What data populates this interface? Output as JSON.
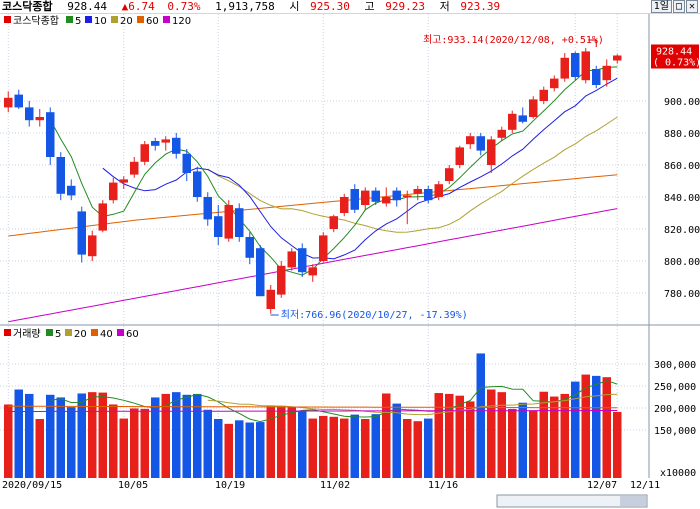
{
  "header": {
    "name": "코스닥종합",
    "close": "928.44",
    "change": "▲6.74",
    "change_pct": "0.73%",
    "volume": "1,913,758",
    "open_label": "시",
    "open": "925.30",
    "high_label": "고",
    "high": "929.23",
    "low_label": "저",
    "low": "923.39"
  },
  "window_controls": {
    "period": "1일",
    "restore": "□",
    "close": "✕"
  },
  "price_panel": {
    "legend": [
      {
        "label": "코스닥종합",
        "color": "#e00000"
      },
      {
        "label": "5",
        "color": "#228b22"
      },
      {
        "label": "10",
        "color": "#1e1ee6"
      },
      {
        "label": "20",
        "color": "#b0a030"
      },
      {
        "label": "60",
        "color": "#e06000"
      },
      {
        "label": "120",
        "color": "#c800c8"
      }
    ],
    "current_price_label": "928.44",
    "current_pct_label": "( 0.73%)",
    "high_annotation": "최고:933.14(2020/12/08, +0.51%)",
    "low_annotation": "최저:766.96(2020/10/27, -17.39%)"
  },
  "volume_panel": {
    "legend": [
      {
        "label": "거래량",
        "color": "#e00000"
      },
      {
        "label": "5",
        "color": "#228b22"
      },
      {
        "label": "20",
        "color": "#b0a030"
      },
      {
        "label": "40",
        "color": "#e06000"
      },
      {
        "label": "60",
        "color": "#c800c8"
      }
    ],
    "unit": "x10000"
  },
  "colors": {
    "up": "#e8201c",
    "down": "#1456e6",
    "grid": "#c8d2e6"
  },
  "chart_data": {
    "type": "candlestick",
    "x_labels": [
      "2020/09/15",
      "10/05",
      "10/19",
      "11/02",
      "11/16",
      "12/07",
      "12/11"
    ],
    "price_axis": {
      "ticks": [
        780,
        800,
        820,
        840,
        860,
        880,
        900
      ],
      "range": [
        766,
        930
      ]
    },
    "volume_axis": {
      "ticks": [
        "150,000",
        "200,000",
        "250,000",
        "300,000"
      ],
      "range": [
        100000,
        330000
      ]
    },
    "candles": [
      {
        "date": "2020/09/15",
        "o": 896.0,
        "h": 906.0,
        "l": 893.0,
        "c": 902.0,
        "v": 208000
      },
      {
        "date": "2020/09/16",
        "o": 904.0,
        "h": 907.0,
        "l": 895.0,
        "c": 896.0,
        "v": 242000
      },
      {
        "date": "2020/09/17",
        "o": 896.0,
        "h": 900.0,
        "l": 884.0,
        "c": 888.0,
        "v": 232000
      },
      {
        "date": "2020/09/18",
        "o": 888.0,
        "h": 895.0,
        "l": 884.0,
        "c": 890.0,
        "v": 175000
      },
      {
        "date": "2020/09/21",
        "o": 893.0,
        "h": 896.0,
        "l": 860.0,
        "c": 865.0,
        "v": 230000
      },
      {
        "date": "2020/09/22",
        "o": 865.0,
        "h": 868.0,
        "l": 838.0,
        "c": 842.0,
        "v": 224000
      },
      {
        "date": "2020/09/23",
        "o": 847.0,
        "h": 851.0,
        "l": 838.0,
        "c": 841.0,
        "v": 202000
      },
      {
        "date": "2020/09/24",
        "o": 831.0,
        "h": 834.0,
        "l": 799.0,
        "c": 804.0,
        "v": 233000
      },
      {
        "date": "2020/09/25",
        "o": 803.0,
        "h": 819.0,
        "l": 800.0,
        "c": 816.0,
        "v": 236000
      },
      {
        "date": "2020/09/28",
        "o": 819.0,
        "h": 838.0,
        "l": 818.0,
        "c": 836.0,
        "v": 235000
      },
      {
        "date": "2020/09/29",
        "o": 838.0,
        "h": 852.0,
        "l": 836.0,
        "c": 849.0,
        "v": 208000
      },
      {
        "date": "2020/10/05",
        "o": 849.0,
        "h": 853.0,
        "l": 845.0,
        "c": 851.0,
        "v": 176000
      },
      {
        "date": "2020/10/06",
        "o": 854.0,
        "h": 865.0,
        "l": 852.0,
        "c": 862.0,
        "v": 199000
      },
      {
        "date": "2020/10/07",
        "o": 862.0,
        "h": 875.0,
        "l": 860.0,
        "c": 873.0,
        "v": 198000
      },
      {
        "date": "2020/10/08",
        "o": 875.0,
        "h": 877.0,
        "l": 869.0,
        "c": 872.0,
        "v": 224000
      },
      {
        "date": "2020/10/12",
        "o": 874.0,
        "h": 878.0,
        "l": 869.0,
        "c": 876.0,
        "v": 232000
      },
      {
        "date": "2020/10/13",
        "o": 877.0,
        "h": 880.0,
        "l": 864.0,
        "c": 867.0,
        "v": 236000
      },
      {
        "date": "2020/10/14",
        "o": 867.0,
        "h": 870.0,
        "l": 850.0,
        "c": 855.0,
        "v": 230000
      },
      {
        "date": "2020/10/15",
        "o": 856.0,
        "h": 859.0,
        "l": 837.0,
        "c": 840.0,
        "v": 232000
      },
      {
        "date": "2020/10/16",
        "o": 840.0,
        "h": 843.0,
        "l": 822.0,
        "c": 826.0,
        "v": 196000
      },
      {
        "date": "2020/10/19",
        "o": 828.0,
        "h": 835.0,
        "l": 810.0,
        "c": 815.0,
        "v": 175000
      },
      {
        "date": "2020/10/20",
        "o": 814.0,
        "h": 838.0,
        "l": 812.0,
        "c": 835.0,
        "v": 164000
      },
      {
        "date": "2020/10/21",
        "o": 833.0,
        "h": 836.0,
        "l": 812.0,
        "c": 815.0,
        "v": 172000
      },
      {
        "date": "2020/10/22",
        "o": 815.0,
        "h": 818.0,
        "l": 798.0,
        "c": 802.0,
        "v": 167000
      },
      {
        "date": "2020/10/26",
        "o": 808.0,
        "h": 810.0,
        "l": 778.0,
        "c": 778.0,
        "v": 168000
      },
      {
        "date": "2020/10/27",
        "o": 770.0,
        "h": 785.0,
        "l": 767.0,
        "c": 782.0,
        "v": 206000
      },
      {
        "date": "2020/10/28",
        "o": 779.0,
        "h": 800.0,
        "l": 777.0,
        "c": 797.0,
        "v": 205000
      },
      {
        "date": "2020/10/29",
        "o": 796.0,
        "h": 808.0,
        "l": 794.0,
        "c": 806.0,
        "v": 202000
      },
      {
        "date": "2020/10/30",
        "o": 808.0,
        "h": 811.0,
        "l": 790.0,
        "c": 793.0,
        "v": 192000
      },
      {
        "date": "2020/11/02",
        "o": 791.0,
        "h": 798.0,
        "l": 787.0,
        "c": 796.0,
        "v": 176000
      },
      {
        "date": "2020/11/03",
        "o": 800.0,
        "h": 818.0,
        "l": 799.0,
        "c": 816.0,
        "v": 182000
      },
      {
        "date": "2020/11/04",
        "o": 820.0,
        "h": 829.0,
        "l": 818.0,
        "c": 828.0,
        "v": 180000
      },
      {
        "date": "2020/11/05",
        "o": 830.0,
        "h": 842.0,
        "l": 828.0,
        "c": 840.0,
        "v": 176000
      },
      {
        "date": "2020/11/06",
        "o": 845.0,
        "h": 848.0,
        "l": 830.0,
        "c": 832.0,
        "v": 185000
      },
      {
        "date": "2020/11/09",
        "o": 835.0,
        "h": 846.0,
        "l": 832.0,
        "c": 844.0,
        "v": 175000
      },
      {
        "date": "2020/11/10",
        "o": 844.0,
        "h": 846.0,
        "l": 835.0,
        "c": 837.0,
        "v": 186000
      },
      {
        "date": "2020/11/11",
        "o": 836.0,
        "h": 846.0,
        "l": 834.0,
        "c": 840.0,
        "v": 233000
      },
      {
        "date": "2020/11/12",
        "o": 844.0,
        "h": 846.0,
        "l": 834.0,
        "c": 838.0,
        "v": 210000
      },
      {
        "date": "2020/11/13",
        "o": 840.0,
        "h": 844.0,
        "l": 823.0,
        "c": 841.0,
        "v": 175000
      },
      {
        "date": "2020/11/16",
        "o": 842.0,
        "h": 847.0,
        "l": 838.0,
        "c": 845.0,
        "v": 170000
      },
      {
        "date": "2020/11/17",
        "o": 845.0,
        "h": 847.0,
        "l": 836.0,
        "c": 838.0,
        "v": 176000
      },
      {
        "date": "2020/11/18",
        "o": 840.0,
        "h": 850.0,
        "l": 838.0,
        "c": 848.0,
        "v": 234000
      },
      {
        "date": "2020/11/19",
        "o": 850.0,
        "h": 860.0,
        "l": 848.0,
        "c": 858.0,
        "v": 232000
      },
      {
        "date": "2020/11/20",
        "o": 860.0,
        "h": 872.0,
        "l": 858.0,
        "c": 871.0,
        "v": 228000
      },
      {
        "date": "2020/11/23",
        "o": 873.0,
        "h": 880.0,
        "l": 870.0,
        "c": 878.0,
        "v": 215000
      },
      {
        "date": "2020/11/24",
        "o": 878.0,
        "h": 880.0,
        "l": 866.0,
        "c": 869.0,
        "v": 324000
      },
      {
        "date": "2020/11/25",
        "o": 860.0,
        "h": 878.0,
        "l": 855.0,
        "c": 876.0,
        "v": 242000
      },
      {
        "date": "2020/11/26",
        "o": 877.0,
        "h": 884.0,
        "l": 875.0,
        "c": 882.0,
        "v": 236000
      },
      {
        "date": "2020/11/27",
        "o": 882.0,
        "h": 894.0,
        "l": 880.0,
        "c": 892.0,
        "v": 198000
      },
      {
        "date": "2020/11/30",
        "o": 891.0,
        "h": 896.0,
        "l": 886.0,
        "c": 887.0,
        "v": 212000
      },
      {
        "date": "2020/12/01",
        "o": 890.0,
        "h": 903.0,
        "l": 889.0,
        "c": 901.0,
        "v": 194000
      },
      {
        "date": "2020/12/02",
        "o": 900.0,
        "h": 909.0,
        "l": 898.0,
        "c": 907.0,
        "v": 237000
      },
      {
        "date": "2020/12/03",
        "o": 908.0,
        "h": 916.0,
        "l": 906.0,
        "c": 914.0,
        "v": 226000
      },
      {
        "date": "2020/12/04",
        "o": 914.0,
        "h": 930.0,
        "l": 912.0,
        "c": 927.0,
        "v": 232000
      },
      {
        "date": "2020/12/07",
        "o": 930.0,
        "h": 931.0,
        "l": 913.0,
        "c": 915.0,
        "v": 260000
      },
      {
        "date": "2020/12/08",
        "o": 913.0,
        "h": 933.14,
        "l": 911.0,
        "c": 931.0,
        "v": 276000
      },
      {
        "date": "2020/12/09",
        "o": 920.0,
        "h": 922.0,
        "l": 908.0,
        "c": 910.0,
        "v": 273000
      },
      {
        "date": "2020/12/10",
        "o": 913.0,
        "h": 926.0,
        "l": 909.0,
        "c": 922.0,
        "v": 270000
      },
      {
        "date": "2020/12/11",
        "o": 925.3,
        "h": 929.23,
        "l": 923.39,
        "c": 928.44,
        "v": 191000
      }
    ]
  }
}
